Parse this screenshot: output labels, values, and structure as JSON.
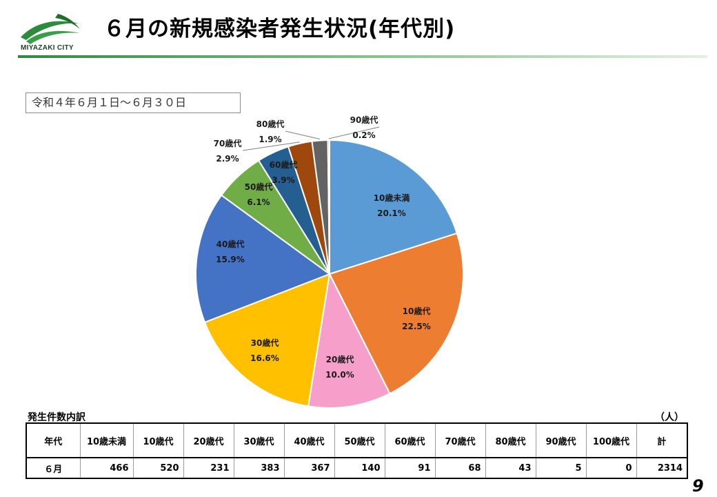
{
  "header": {
    "logo_text": "MIYAZAKI CITY",
    "title": "６月の新規感染者発生状況(年代別)",
    "period_label": "令和４年６月１日～６月３０日"
  },
  "chart_data": {
    "type": "pie",
    "categories": [
      "10歳未満",
      "10歳代",
      "20歳代",
      "30歳代",
      "40歳代",
      "50歳代",
      "60歳代",
      "70歳代",
      "80歳代",
      "90歳代"
    ],
    "values": [
      20.1,
      22.5,
      10.0,
      16.6,
      15.9,
      6.1,
      3.9,
      2.9,
      1.9,
      0.2
    ],
    "value_labels": [
      "20.1%",
      "22.5%",
      "10.0%",
      "16.6%",
      "15.9%",
      "6.1%",
      "3.9%",
      "2.9%",
      "1.9%",
      "0.2%"
    ],
    "colors": [
      "#5b9bd5",
      "#ed7d31",
      "#f79fcb",
      "#ffc000",
      "#4472c4",
      "#70ad47",
      "#255e91",
      "#9e480e",
      "#636363",
      "#c9b27c"
    ],
    "start_angle": "12 o'clock, clockwise"
  },
  "table": {
    "caption": "発生件数内訳",
    "unit": "（人）",
    "headers": [
      "年代",
      "10歳未満",
      "10歳代",
      "20歳代",
      "30歳代",
      "40歳代",
      "50歳代",
      "60歳代",
      "70歳代",
      "80歳代",
      "90歳代",
      "100歳代",
      "計"
    ],
    "row": [
      "６月",
      "466",
      "520",
      "231",
      "383",
      "367",
      "140",
      "91",
      "68",
      "43",
      "5",
      "0",
      "2314"
    ]
  },
  "footer": {
    "page_number": "9"
  }
}
